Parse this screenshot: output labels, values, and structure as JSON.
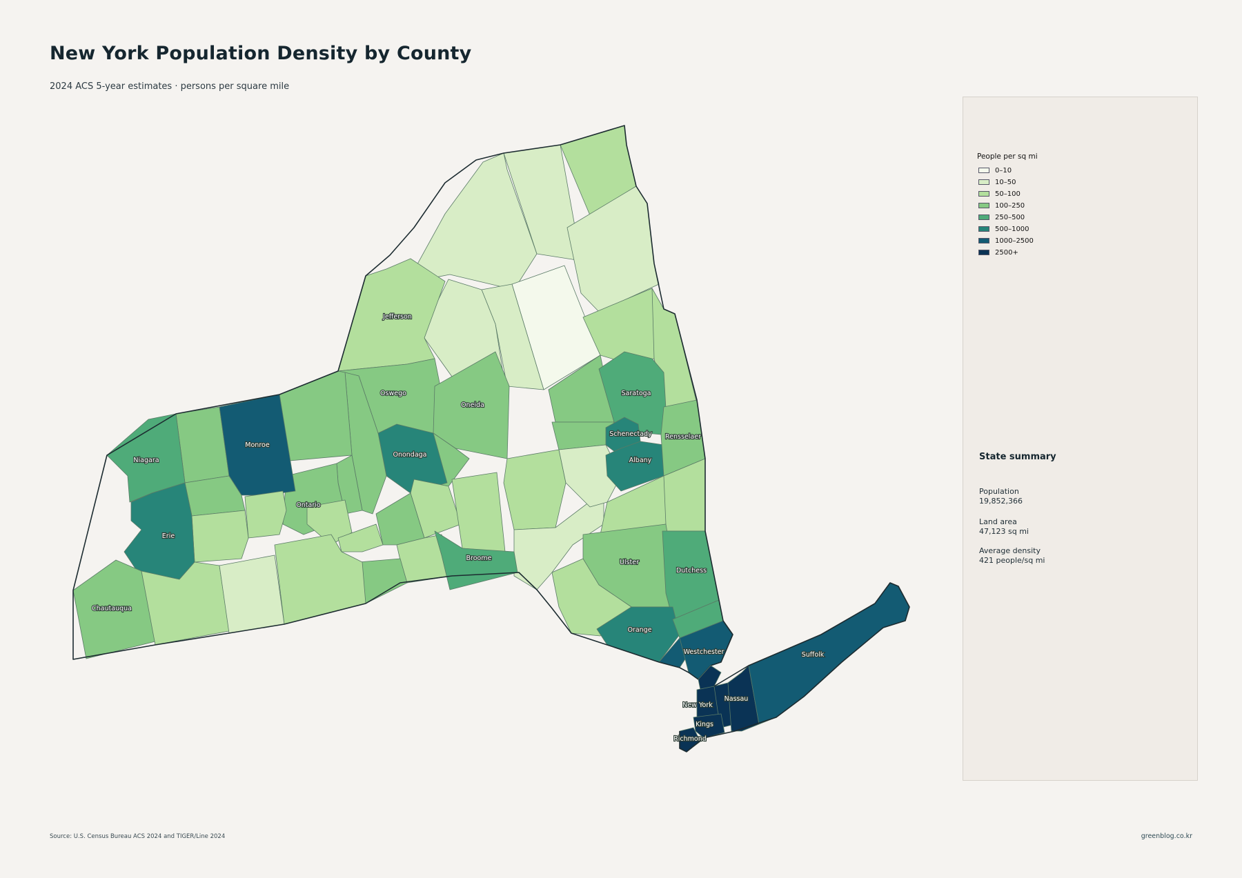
{
  "title": "New York Population Density by County",
  "subtitle": "2024 ACS 5-year estimates · persons per square mile",
  "legend": {
    "title": "People per sq mi",
    "bins": [
      {
        "label": "0–10",
        "color": "#f4f9ec"
      },
      {
        "label": "10–50",
        "color": "#d8edc6"
      },
      {
        "label": "50–100",
        "color": "#b3df9d"
      },
      {
        "label": "100–250",
        "color": "#86c983"
      },
      {
        "label": "250–500",
        "color": "#4fab79"
      },
      {
        "label": "500–1000",
        "color": "#278579"
      },
      {
        "label": "1000–2500",
        "color": "#135b73"
      },
      {
        "label": "2500+",
        "color": "#0a3355"
      }
    ]
  },
  "counties": [
    {
      "name": "Jefferson",
      "bin": 2
    },
    {
      "name": "Oswego",
      "bin": 3
    },
    {
      "name": "Oneida",
      "bin": 3
    },
    {
      "name": "Saratoga",
      "bin": 4
    },
    {
      "name": "Schenectady",
      "bin": 5
    },
    {
      "name": "Rensselaer",
      "bin": 3
    },
    {
      "name": "Albany",
      "bin": 5
    },
    {
      "name": "Niagara",
      "bin": 4
    },
    {
      "name": "Monroe",
      "bin": 6
    },
    {
      "name": "Onondaga",
      "bin": 5
    },
    {
      "name": "Ontario",
      "bin": 3
    },
    {
      "name": "Erie",
      "bin": 5
    },
    {
      "name": "Chautauqua",
      "bin": 3
    },
    {
      "name": "Broome",
      "bin": 4
    },
    {
      "name": "Ulster",
      "bin": 3
    },
    {
      "name": "Dutchess",
      "bin": 4
    },
    {
      "name": "Orange",
      "bin": 5
    },
    {
      "name": "Westchester",
      "bin": 6
    },
    {
      "name": "Suffolk",
      "bin": 6
    },
    {
      "name": "Nassau",
      "bin": 7
    },
    {
      "name": "New York",
      "bin": 7
    },
    {
      "name": "Kings",
      "bin": 7
    },
    {
      "name": "Richmond",
      "bin": 7
    }
  ],
  "summary": {
    "title": "State summary",
    "population_label": "Population",
    "population_value": "19,852,366",
    "land_label": "Land area",
    "land_value": "47,123 sq mi",
    "density_label": "Average density",
    "density_value": "421 people/sq mi"
  },
  "source": "Source: U.S. Census Bureau ACS 2024 and TIGER/Line 2024",
  "credit": "greenblog.co.kr"
}
